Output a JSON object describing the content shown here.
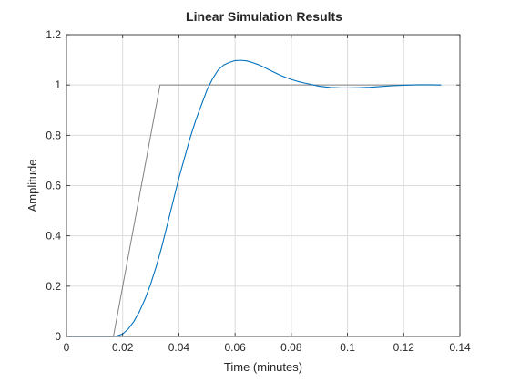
{
  "chart_data": {
    "type": "line",
    "title": "Linear Simulation Results",
    "xlabel": "Time (minutes)",
    "ylabel": "Amplitude",
    "xlim": [
      0,
      0.14
    ],
    "ylim": [
      0,
      1.2
    ],
    "xticks": [
      0,
      0.02,
      0.04,
      0.06,
      0.08,
      0.1,
      0.12,
      0.14
    ],
    "xtick_labels": [
      "0",
      "0.02",
      "0.04",
      "0.06",
      "0.08",
      "0.1",
      "0.12",
      "0.14"
    ],
    "yticks": [
      0,
      0.2,
      0.4,
      0.6,
      0.8,
      1,
      1.2
    ],
    "ytick_labels": [
      "0",
      "0.2",
      "0.4",
      "0.6",
      "0.8",
      "1",
      "1.2"
    ],
    "grid": true,
    "series": [
      {
        "color": "#808080",
        "x": [
          0,
          0.0167,
          0.0333,
          0.0667,
          0.1,
          0.1333
        ],
        "y": [
          0,
          0,
          1,
          1,
          1,
          1
        ]
      },
      {
        "color": "#0072BD",
        "x": [
          0,
          0.0167,
          0.018,
          0.02,
          0.022,
          0.024,
          0.026,
          0.028,
          0.03,
          0.032,
          0.034,
          0.036,
          0.038,
          0.04,
          0.042,
          0.044,
          0.046,
          0.048,
          0.05,
          0.052,
          0.054,
          0.056,
          0.058,
          0.06,
          0.062,
          0.064,
          0.066,
          0.068,
          0.07,
          0.072,
          0.074,
          0.076,
          0.078,
          0.08,
          0.082,
          0.085,
          0.088,
          0.09,
          0.094,
          0.098,
          0.1,
          0.104,
          0.108,
          0.112,
          0.116,
          0.12,
          0.125,
          0.13,
          0.1333
        ],
        "y": [
          0,
          0,
          0.002,
          0.01,
          0.03,
          0.06,
          0.1,
          0.15,
          0.21,
          0.28,
          0.36,
          0.45,
          0.54,
          0.63,
          0.71,
          0.79,
          0.86,
          0.92,
          0.98,
          1.025,
          1.06,
          1.08,
          1.09,
          1.097,
          1.098,
          1.096,
          1.09,
          1.082,
          1.072,
          1.061,
          1.05,
          1.039,
          1.03,
          1.022,
          1.015,
          1.007,
          1.0,
          0.995,
          0.99,
          0.988,
          0.988,
          0.989,
          0.991,
          0.994,
          0.997,
          0.999,
          1.001,
          1.001,
          1.0
        ]
      }
    ]
  }
}
